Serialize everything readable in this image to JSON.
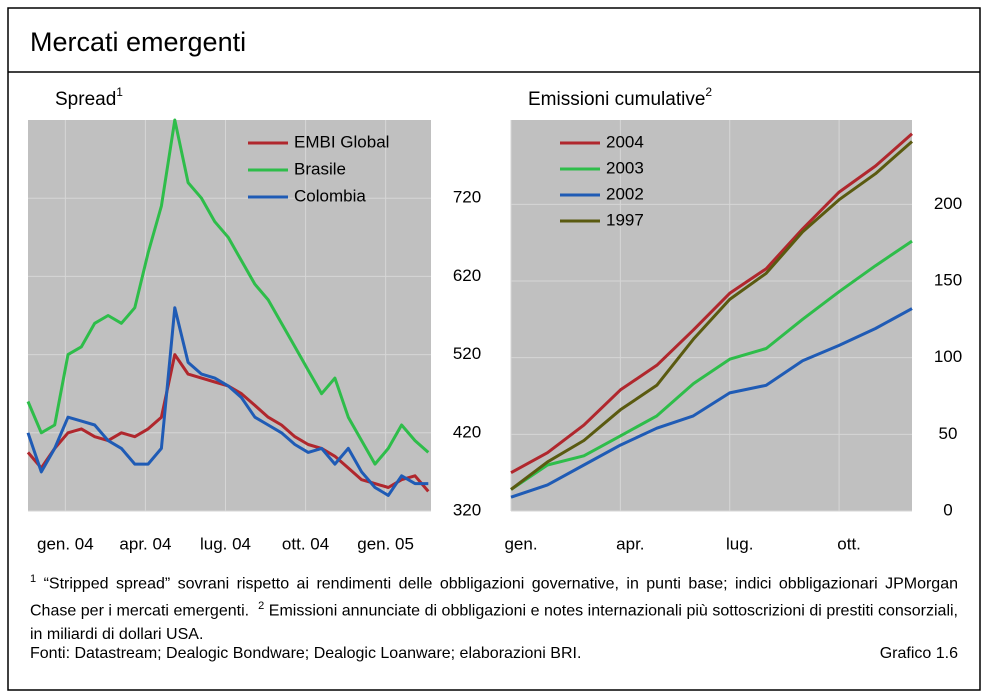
{
  "header": {
    "title": "Mercati emergenti"
  },
  "chart_data": [
    {
      "type": "line",
      "title": "Spread",
      "title_note": "1",
      "x": [
        -1.4,
        -0.9,
        -0.4,
        0.1,
        0.6,
        1.1,
        1.6,
        2.1,
        2.6,
        3.1,
        3.6,
        4.1,
        4.6,
        5.1,
        5.6,
        6.1,
        6.6,
        7.1,
        7.6,
        8.1,
        8.6,
        9.1,
        9.6,
        10.1,
        10.6,
        11.1,
        11.6,
        12.1,
        12.6,
        13.1,
        13.6
      ],
      "xlim": [
        -1.4,
        13.7
      ],
      "xticks": [
        {
          "value": 0,
          "label": "gen. 04"
        },
        {
          "value": 3,
          "label": "apr. 04"
        },
        {
          "value": 6,
          "label": "lug. 04"
        },
        {
          "value": 9,
          "label": "ott. 04"
        },
        {
          "value": 12,
          "label": "gen. 05"
        }
      ],
      "ylim": [
        320,
        820
      ],
      "yticks": [
        320,
        420,
        520,
        620,
        720
      ],
      "grid": true,
      "legend": "upper right",
      "series": [
        {
          "name": "EMBI Global",
          "color": "#b0272d",
          "values": [
            395,
            375,
            400,
            420,
            425,
            415,
            410,
            420,
            415,
            425,
            440,
            520,
            495,
            490,
            485,
            480,
            470,
            455,
            440,
            430,
            415,
            405,
            400,
            390,
            375,
            360,
            355,
            350,
            360,
            365,
            345
          ]
        },
        {
          "name": "Brasile",
          "color": "#2ebd4a",
          "values": [
            460,
            420,
            430,
            520,
            530,
            560,
            570,
            560,
            580,
            650,
            710,
            820,
            740,
            720,
            690,
            670,
            640,
            610,
            590,
            560,
            530,
            500,
            470,
            490,
            440,
            410,
            380,
            400,
            430,
            410,
            395
          ]
        },
        {
          "name": "Colombia",
          "color": "#1f5bb5",
          "values": [
            420,
            370,
            400,
            440,
            435,
            430,
            410,
            400,
            380,
            380,
            400,
            580,
            510,
            495,
            490,
            480,
            465,
            440,
            430,
            420,
            405,
            395,
            400,
            380,
            400,
            370,
            350,
            340,
            365,
            355,
            355
          ]
        }
      ]
    },
    {
      "type": "line",
      "title": "Emissioni cumulative",
      "title_note": "2",
      "categories": [
        "gen.",
        null,
        null,
        "apr.",
        null,
        null,
        "lug.",
        null,
        null,
        "ott.",
        null,
        null
      ],
      "ylim": [
        0,
        255
      ],
      "yticks": [
        0,
        50,
        100,
        150,
        200
      ],
      "grid": true,
      "legend": "upper left",
      "series": [
        {
          "name": "2004",
          "color": "#b0272d",
          "values": [
            25,
            38,
            56,
            79,
            95,
            118,
            142,
            158,
            184,
            208,
            225,
            246
          ]
        },
        {
          "name": "2003",
          "color": "#2ebd4a",
          "values": [
            14,
            30,
            36,
            49,
            62,
            83,
            99,
            106,
            125,
            143,
            160,
            176
          ]
        },
        {
          "name": "2002",
          "color": "#1f5bb5",
          "values": [
            9,
            17,
            30,
            43,
            54,
            62,
            77,
            82,
            98,
            108,
            119,
            132
          ]
        },
        {
          "name": "1997",
          "color": "#5a5a10",
          "values": [
            14,
            32,
            46,
            66,
            82,
            112,
            138,
            155,
            182,
            203,
            220,
            241
          ]
        }
      ]
    }
  ],
  "notes": [
    {
      "marker": "1",
      "text": "“Stripped spread” sovrani rispetto ai rendimenti delle obbligazioni governative, in punti base; indici obbligazionari JPMorgan Chase per i mercati emergenti."
    },
    {
      "marker": "2",
      "text": "Emissioni annunciate di obbligazioni e notes internazionali più sottoscrizioni di prestiti consorziali, in miliardi di dollari USA."
    }
  ],
  "footer": {
    "sources": "Fonti: Datastream; Dealogic Bondware; Dealogic Loanware; elaborazioni BRI.",
    "label": "Grafico 1.6"
  }
}
